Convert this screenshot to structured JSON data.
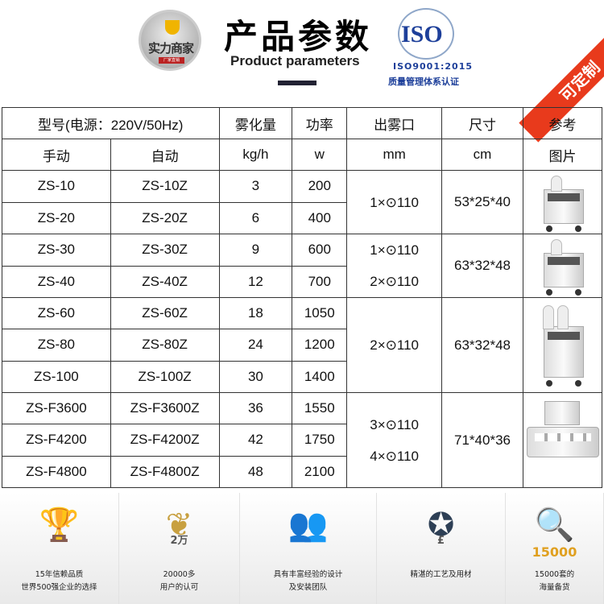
{
  "header": {
    "logo_text": "实力商家",
    "logo_sub": "厂家直销",
    "title": "产品参数",
    "subtitle": "Product parameters",
    "iso_logo": "ISO",
    "iso_cert": "ISO9001:2015",
    "iso_caption": "质量管理体系认证",
    "ribbon": "可定制",
    "accent_color": "#e83a1c"
  },
  "table": {
    "headers": {
      "model": "型号(电源：220V/50Hz)",
      "manual": "手动",
      "auto": "自动",
      "mist": "雾化量",
      "mist_unit": "kg/h",
      "power": "功率",
      "power_unit": "w",
      "outlet": "出雾口",
      "outlet_unit": "mm",
      "size": "尺寸",
      "size_unit": "cm",
      "ref": "参考",
      "ref2": "图片"
    },
    "rows": [
      {
        "manual": "ZS-10",
        "auto": "ZS-10Z",
        "mist": "3",
        "power": "200"
      },
      {
        "manual": "ZS-20",
        "auto": "ZS-20Z",
        "mist": "6",
        "power": "400"
      },
      {
        "manual": "ZS-30",
        "auto": "ZS-30Z",
        "mist": "9",
        "power": "600"
      },
      {
        "manual": "ZS-40",
        "auto": "ZS-40Z",
        "mist": "12",
        "power": "700"
      },
      {
        "manual": "ZS-60",
        "auto": "ZS-60Z",
        "mist": "18",
        "power": "1050"
      },
      {
        "manual": "ZS-80",
        "auto": "ZS-80Z",
        "mist": "24",
        "power": "1200"
      },
      {
        "manual": "ZS-100",
        "auto": "ZS-100Z",
        "mist": "30",
        "power": "1400"
      },
      {
        "manual": "ZS-F3600",
        "auto": "ZS-F3600Z",
        "mist": "36",
        "power": "1550"
      },
      {
        "manual": "ZS-F4200",
        "auto": "ZS-F4200Z",
        "mist": "42",
        "power": "1750"
      },
      {
        "manual": "ZS-F4800",
        "auto": "ZS-F4800Z",
        "mist": "48",
        "power": "2100"
      }
    ],
    "groups": [
      {
        "outlet": [
          "1×⊙110"
        ],
        "size": "53*25*40"
      },
      {
        "outlet": [
          "1×⊙110",
          "2×⊙110"
        ],
        "size": "63*32*48"
      },
      {
        "outlet": [
          "2×⊙110"
        ],
        "size": "63*32*48"
      },
      {
        "outlet": [
          "3×⊙110",
          "4×⊙110"
        ],
        "size": "71*40*36"
      }
    ]
  },
  "footer": [
    {
      "icon": "trophy-icon",
      "lines": [
        "15年信赖品质",
        "世界500强企业的选择"
      ]
    },
    {
      "icon": "laurel-badge-icon",
      "badge": "2万",
      "lines": [
        "20000多",
        "用户的认可"
      ]
    },
    {
      "icon": "team-icon",
      "lines": [
        "具有丰富经验的设计",
        "及安装团队"
      ]
    },
    {
      "icon": "award-ribbon-icon",
      "badge": "£",
      "lines": [
        "精湛的工艺及用材"
      ]
    },
    {
      "icon": "magnifier-icon",
      "badge": "15000",
      "lines": [
        "15000套的",
        "海量备货"
      ]
    }
  ]
}
